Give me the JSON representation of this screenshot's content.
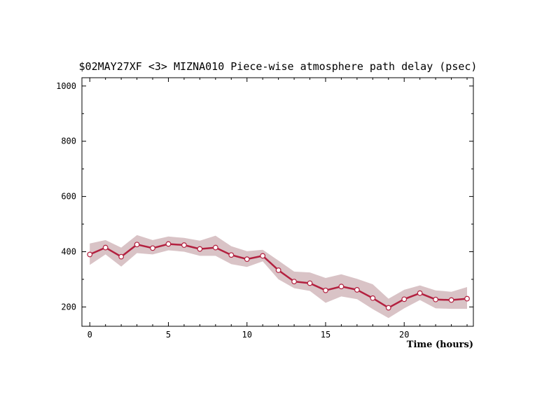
{
  "chart_data": {
    "type": "line",
    "title": "$02MAY27XF <3>  MIZNA010  Piece-wise atmosphere path delay (psec)",
    "xlabel": "Time (hours)",
    "ylabel": "",
    "xlim": [
      -0.5,
      24.4
    ],
    "ylim": [
      130,
      1030
    ],
    "x_ticks": [
      0,
      5,
      10,
      15,
      20
    ],
    "y_ticks": [
      200,
      400,
      600,
      800,
      1000
    ],
    "grid": false,
    "colors": {
      "line": "#b3203f",
      "band": "#d9c3c6",
      "marker_fill": "#ffffff"
    },
    "series": [
      {
        "x": [
          0,
          1,
          2,
          3,
          4,
          5,
          6,
          7,
          8,
          9,
          10,
          11,
          12,
          13,
          14,
          15,
          16,
          17,
          18,
          19,
          20,
          21,
          22,
          23,
          24
        ],
        "values": [
          390,
          415,
          382,
          426,
          413,
          428,
          424,
          410,
          415,
          388,
          373,
          385,
          333,
          292,
          286,
          260,
          274,
          262,
          232,
          197,
          228,
          250,
          227,
          225,
          230
        ],
        "lower": [
          352,
          390,
          346,
          395,
          390,
          405,
          400,
          385,
          385,
          355,
          345,
          365,
          300,
          268,
          258,
          215,
          238,
          228,
          192,
          160,
          195,
          225,
          195,
          193,
          193
        ],
        "upper": [
          430,
          442,
          415,
          460,
          442,
          455,
          450,
          440,
          458,
          420,
          402,
          407,
          368,
          328,
          325,
          305,
          318,
          302,
          282,
          230,
          262,
          278,
          260,
          255,
          272
        ]
      }
    ]
  }
}
